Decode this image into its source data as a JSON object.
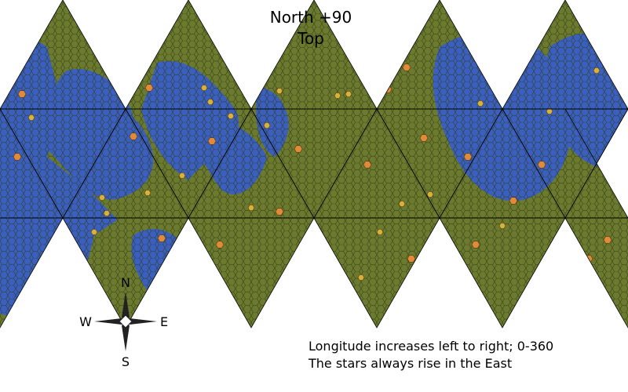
{
  "title": {
    "line1": "North +90",
    "line2": "Top"
  },
  "compass": {
    "n": "N",
    "s": "S",
    "e": "E",
    "w": "W"
  },
  "notes": {
    "line1": "Longitude increases left to right; 0-360",
    "line2": "The stars always rise in the East"
  },
  "colors": {
    "land": "#6b7a2e",
    "water": "#3a5fbf",
    "hex_line": "#2f3a12",
    "grid_line": "#000000",
    "city": "#e08a3a",
    "town": "#d6b23a"
  }
}
